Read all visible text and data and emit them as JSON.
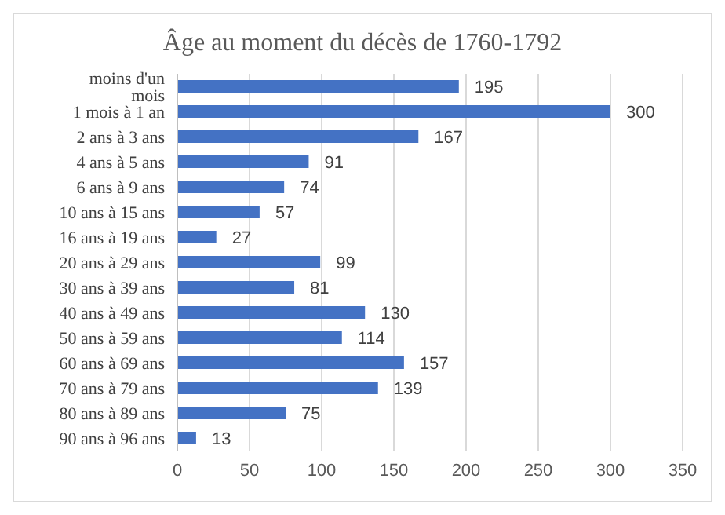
{
  "chart_data": {
    "type": "bar",
    "orientation": "horizontal",
    "title": "Âge au moment du décès de 1760-1792",
    "categories": [
      "moins d'un mois",
      "1 mois à 1 an",
      "2 ans à 3 ans",
      "4 ans à 5 ans",
      "6 ans à 9 ans",
      "10 ans à 15 ans",
      "16 ans à 19 ans",
      "20 ans à 29 ans",
      "30 ans à 39 ans",
      "40 ans à 49 ans",
      "50 ans à 59 ans",
      "60 ans à 69 ans",
      "70 ans à 79 ans",
      "80 ans à 89 ans",
      "90 ans à 96 ans"
    ],
    "values": [
      195,
      300,
      167,
      91,
      74,
      57,
      27,
      99,
      81,
      130,
      114,
      157,
      139,
      75,
      13
    ],
    "color": "#4472c4",
    "xlim": [
      0,
      350
    ],
    "xticks": [
      0,
      50,
      100,
      150,
      200,
      250,
      300,
      350
    ],
    "grid": "x",
    "data_labels": true
  }
}
